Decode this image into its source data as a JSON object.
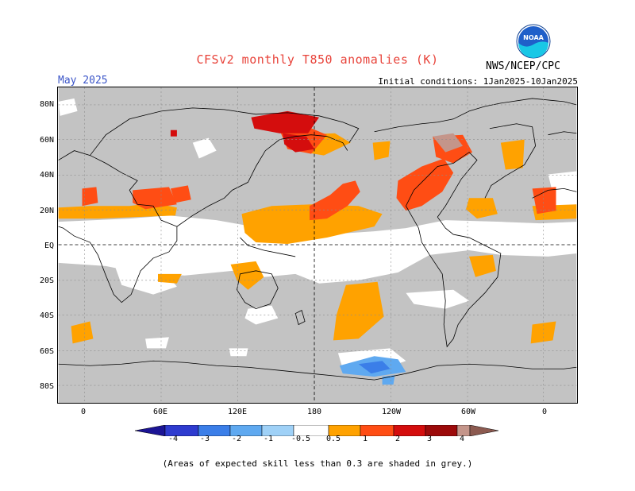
{
  "header": {
    "title": "CFSv2 monthly T850 anomalies (K)",
    "agency": "NWS/NCEP/CPC",
    "month": "May 2025",
    "initial_conditions": "Initial conditions: 1Jan2025-10Jan2025",
    "logo_text": "NOAA"
  },
  "axes": {
    "lat_labels": [
      "80N",
      "60N",
      "40N",
      "20N",
      "EQ",
      "20S",
      "40S",
      "60S",
      "80S"
    ],
    "lon_labels": [
      "0",
      "60E",
      "120E",
      "180",
      "120W",
      "60W",
      "0"
    ]
  },
  "legend": {
    "labels": [
      "-4",
      "-3",
      "-2",
      "-1",
      "-0.5",
      "0.5",
      "1",
      "2",
      "3",
      "4"
    ],
    "colors": [
      "#1b1495",
      "#2e3bcf",
      "#3b7ee8",
      "#5fa9f0",
      "#9fd1f7",
      "#ffffff",
      "#ffa200",
      "#ff4d14",
      "#d40d0d",
      "#9c0a0a",
      "#c4958a",
      "#8c5a50"
    ]
  },
  "footnote": "(Areas of expected skill less than 0.3 are shaded in grey.)",
  "colors": {
    "grey_low_skill": "#c3c3c3",
    "no_anomaly": "#ffffff",
    "title": "#e8433a",
    "month": "#3b55c8"
  }
}
